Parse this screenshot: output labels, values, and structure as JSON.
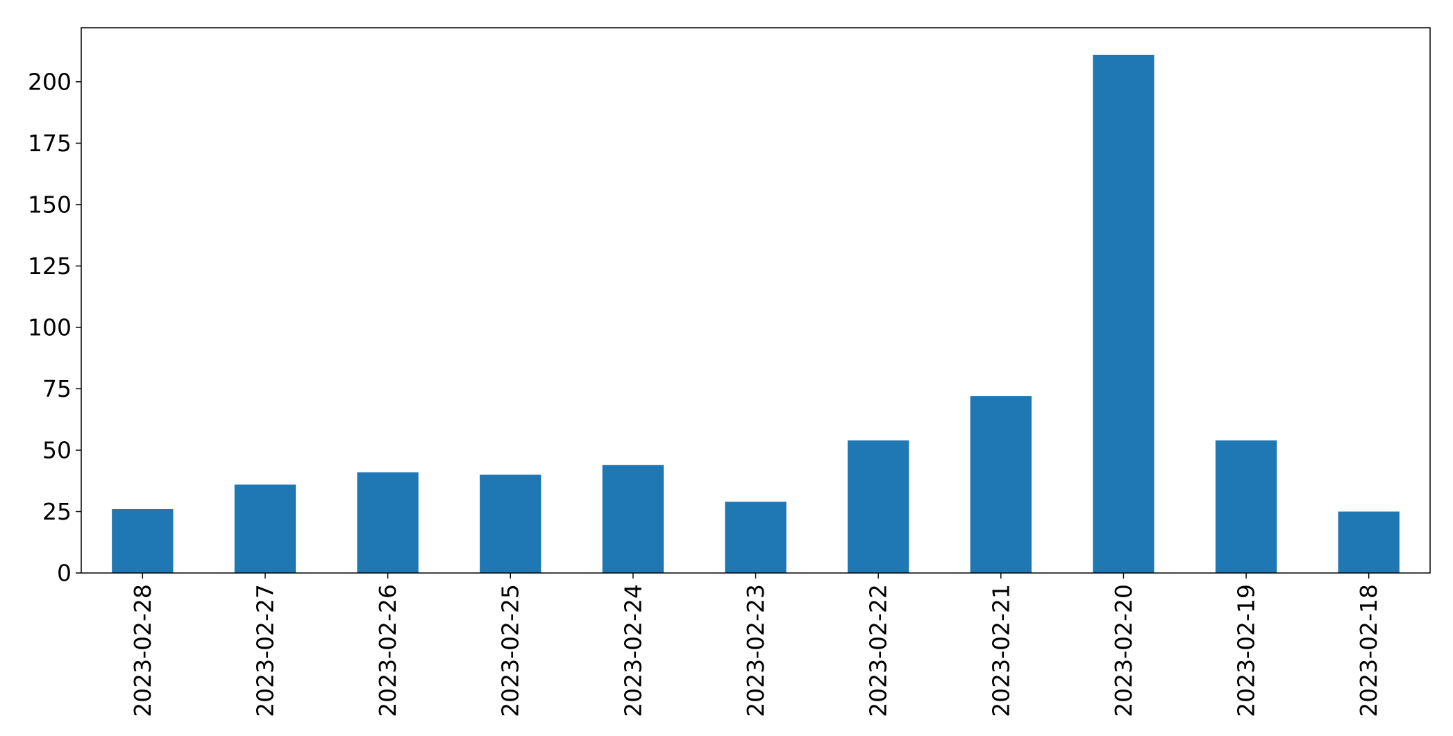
{
  "chart_data": {
    "type": "bar",
    "title": "",
    "xlabel": "",
    "ylabel": "",
    "categories": [
      "2023-02-28",
      "2023-02-27",
      "2023-02-26",
      "2023-02-25",
      "2023-02-24",
      "2023-02-23",
      "2023-02-22",
      "2023-02-21",
      "2023-02-20",
      "2023-02-19",
      "2023-02-18"
    ],
    "values": [
      26,
      36,
      41,
      40,
      44,
      29,
      54,
      72,
      211,
      54,
      25
    ],
    "ylim": [
      0,
      222
    ],
    "yticks": [
      0,
      25,
      50,
      75,
      100,
      125,
      150,
      175,
      200
    ],
    "grid": false,
    "legend": "none",
    "bar_color": "#1f77b4"
  }
}
